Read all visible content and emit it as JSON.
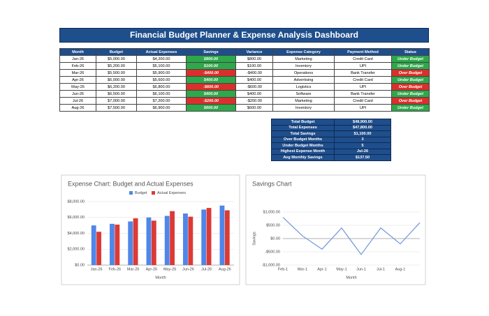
{
  "title": "Financial Budget Planner & Expense Analysis Dashboard",
  "table": {
    "headers": [
      "Month",
      "Budget",
      "Actual Expenses",
      "Savings",
      "Variance",
      "Expense Category",
      "Payment Method",
      "Status"
    ],
    "rows": [
      [
        "Jan-26",
        "$5,000.00",
        "$4,200.00",
        "$800.00",
        "$800.00",
        "Marketing",
        "Credit Card",
        "Under Budget"
      ],
      [
        "Feb-26",
        "$5,200.00",
        "$5,100.00",
        "$100.00",
        "$100.00",
        "Inventory",
        "UPI",
        "Under Budget"
      ],
      [
        "Mar-26",
        "$5,500.00",
        "$5,900.00",
        "-$400.00",
        "-$400.00",
        "Operations",
        "Bank Transfer",
        "Over Budget"
      ],
      [
        "Apr-26",
        "$6,000.00",
        "$5,600.00",
        "$400.00",
        "$400.00",
        "Advertising",
        "Credit Card",
        "Under Budget"
      ],
      [
        "May-26",
        "$6,200.00",
        "$6,800.00",
        "-$600.00",
        "-$600.00",
        "Logistics",
        "UPI",
        "Over Budget"
      ],
      [
        "Jun-26",
        "$6,500.00",
        "$6,100.00",
        "$400.00",
        "$400.00",
        "Software",
        "Bank Transfer",
        "Under Budget"
      ],
      [
        "Jul-26",
        "$7,000.00",
        "$7,200.00",
        "-$200.00",
        "-$200.00",
        "Marketing",
        "Credit Card",
        "Over Budget"
      ],
      [
        "Aug-26",
        "$7,500.00",
        "$6,900.00",
        "$600.00",
        "$600.00",
        "Inventory",
        "UPI",
        "Under Budget"
      ]
    ],
    "status_colors": {
      "Under Budget": "#2ea84a",
      "Over Budget": "#d9302c"
    }
  },
  "summary": [
    [
      "Total Budget",
      "$48,900.00"
    ],
    [
      "Total Expenses",
      "$47,800.00"
    ],
    [
      "Total Savings",
      "$1,100.00"
    ],
    [
      "Over Budget Months",
      "3"
    ],
    [
      "Under Budget Months",
      "5"
    ],
    [
      "Highest Expense Month",
      "Jul-26"
    ],
    [
      "Avg Monthly Savings",
      "$137.50"
    ]
  ],
  "chart_data": [
    {
      "type": "bar",
      "title": "Expense Chart: Budget and Actual Expenses",
      "categories": [
        "Jan-26",
        "Feb-26",
        "Mar-26",
        "Apr-26",
        "May-26",
        "Jun-26",
        "Jul-26",
        "Aug-26"
      ],
      "series": [
        {
          "name": "Budget",
          "color": "#4f86e8",
          "values": [
            5000,
            5200,
            5500,
            6000,
            6200,
            6500,
            7000,
            7500
          ]
        },
        {
          "name": "Actual Expenses",
          "color": "#dc3a36",
          "values": [
            4200,
            5100,
            5900,
            5600,
            6800,
            6100,
            7200,
            6900
          ]
        }
      ],
      "xlabel": "Month",
      "ylim": [
        0,
        8000
      ],
      "yticks": [
        {
          "value": 0,
          "label": "$0.00"
        },
        {
          "value": 2000,
          "label": "$2,000.00"
        },
        {
          "value": 4000,
          "label": "$4,000.00"
        },
        {
          "value": 6000,
          "label": "$6,000.00"
        },
        {
          "value": 8000,
          "label": "$8,000.00"
        }
      ],
      "grid": true,
      "legend": "top"
    },
    {
      "type": "line",
      "title": "Savings Chart",
      "categories": [
        "Feb-1",
        "Mar-1",
        "Apr-1",
        "May-1",
        "Jun-1",
        "Jul-1",
        "Aug-1",
        null
      ],
      "series": [
        {
          "name": "Savings",
          "color": "#6f95d8",
          "values": [
            800,
            100,
            -400,
            400,
            -600,
            400,
            -200,
            600
          ]
        }
      ],
      "xlabel": "Month",
      "ylabel": "Savings",
      "ylim": [
        -1000,
        1000
      ],
      "yticks": [
        {
          "value": -1000,
          "label": "-$1,000.00"
        },
        {
          "value": -500,
          "label": "-$500.00"
        },
        {
          "value": 0,
          "label": "$0.00"
        },
        {
          "value": 500,
          "label": "$500.00"
        },
        {
          "value": 1000,
          "label": "$1,000.00"
        }
      ],
      "grid": true
    }
  ]
}
